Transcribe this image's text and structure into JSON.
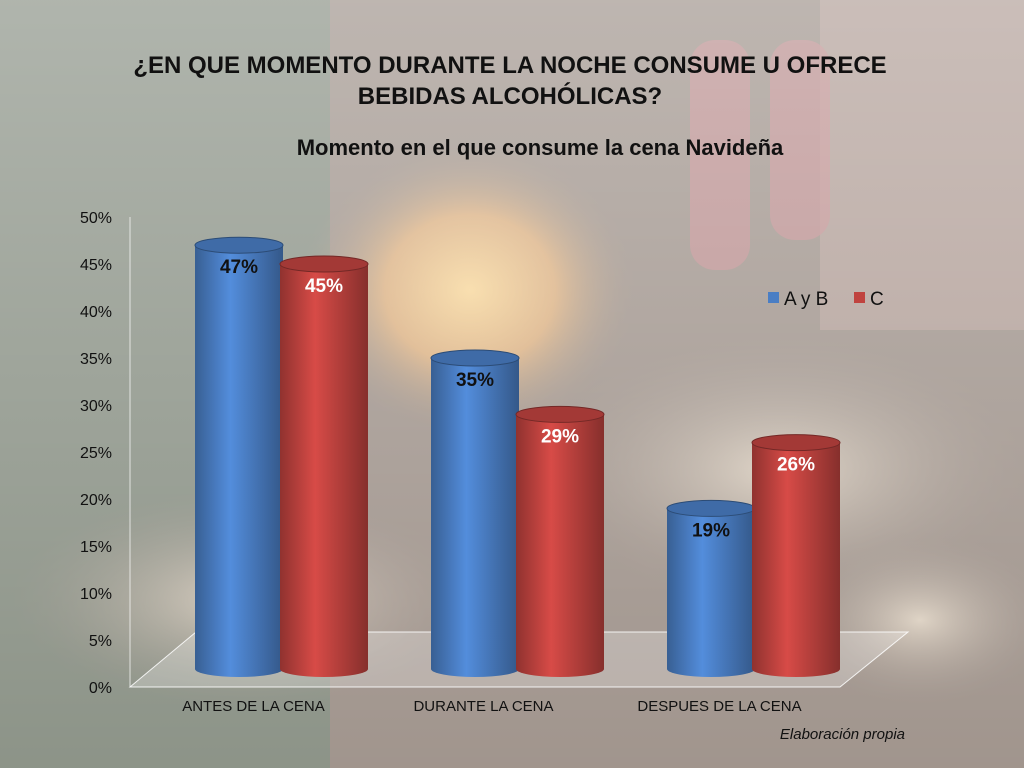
{
  "slide": {
    "title": "¿EN QUE MOMENTO DURANTE LA NOCHE CONSUME U OFRECE BEBIDAS ALCOHÓLICAS?",
    "footnote": "Elaboración propia"
  },
  "colors": {
    "series_a": "#4a7ec4",
    "series_c": "#c0433f"
  },
  "chart_data": {
    "type": "bar",
    "title": "Momento en el que consume la cena Navideña",
    "categories": [
      "ANTES DE LA CENA",
      "DURANTE LA CENA",
      "DESPUES DE LA CENA"
    ],
    "series": [
      {
        "name": "A y B",
        "values": [
          47,
          35,
          19
        ],
        "labels": [
          "47%",
          "35%",
          "19%"
        ]
      },
      {
        "name": "C",
        "values": [
          45,
          29,
          26
        ],
        "labels": [
          "45%",
          "29%",
          "26%"
        ]
      }
    ],
    "ylim": [
      0,
      50
    ],
    "yticks": [
      "0%",
      "5%",
      "10%",
      "15%",
      "20%",
      "25%",
      "30%",
      "35%",
      "40%",
      "45%",
      "50%"
    ],
    "legend": "right",
    "grid": false,
    "xlabel": "",
    "ylabel": ""
  }
}
